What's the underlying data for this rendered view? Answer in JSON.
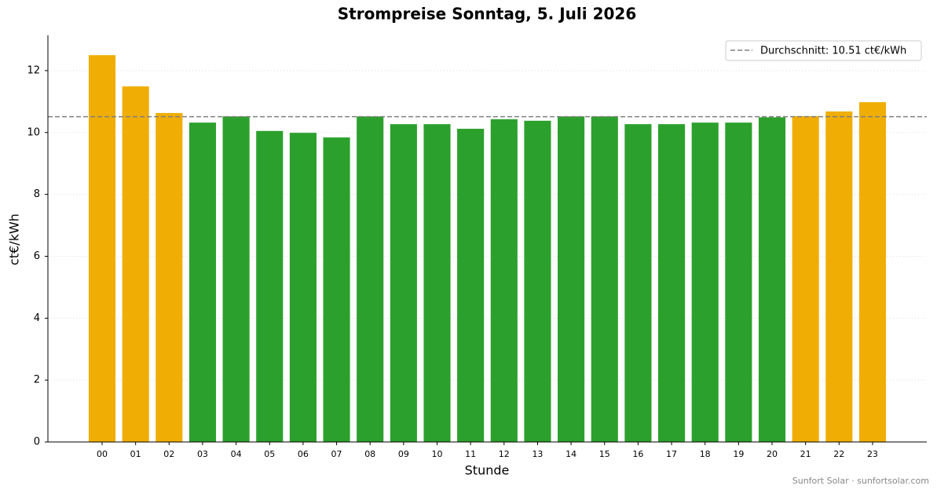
{
  "chart_data": {
    "type": "bar",
    "title": "Strompreise Sonntag, 5. Juli 2026",
    "x_label": "Stunde",
    "y_label": "ct€/kWh",
    "categories": [
      "00",
      "01",
      "02",
      "03",
      "04",
      "05",
      "06",
      "07",
      "08",
      "09",
      "10",
      "11",
      "12",
      "13",
      "14",
      "15",
      "16",
      "17",
      "18",
      "19",
      "20",
      "21",
      "22",
      "23"
    ],
    "values": [
      12.5,
      11.49,
      10.63,
      10.32,
      10.52,
      10.05,
      9.99,
      9.84,
      10.52,
      10.27,
      10.27,
      10.12,
      10.43,
      10.38,
      10.52,
      10.52,
      10.27,
      10.27,
      10.32,
      10.32,
      10.49,
      10.53,
      10.68,
      10.98
    ],
    "colors": [
      "#f0ae05",
      "#f0ae05",
      "#f0ae05",
      "#2ca02c",
      "#2ca02c",
      "#2ca02c",
      "#2ca02c",
      "#2ca02c",
      "#2ca02c",
      "#2ca02c",
      "#2ca02c",
      "#2ca02c",
      "#2ca02c",
      "#2ca02c",
      "#2ca02c",
      "#2ca02c",
      "#2ca02c",
      "#2ca02c",
      "#2ca02c",
      "#2ca02c",
      "#2ca02c",
      "#f0ae05",
      "#f0ae05",
      "#f0ae05"
    ],
    "average": {
      "value": 10.51,
      "label": "Durchschnitt: 10.51 ct€/kWh",
      "color": "#808080"
    },
    "ylim": [
      0,
      13.14
    ],
    "yticks": [
      0,
      2,
      4,
      6,
      8,
      10,
      12
    ],
    "grid": true,
    "legend": "upper right",
    "footer": "Sunfort Solar · sunfortsolar.com"
  }
}
